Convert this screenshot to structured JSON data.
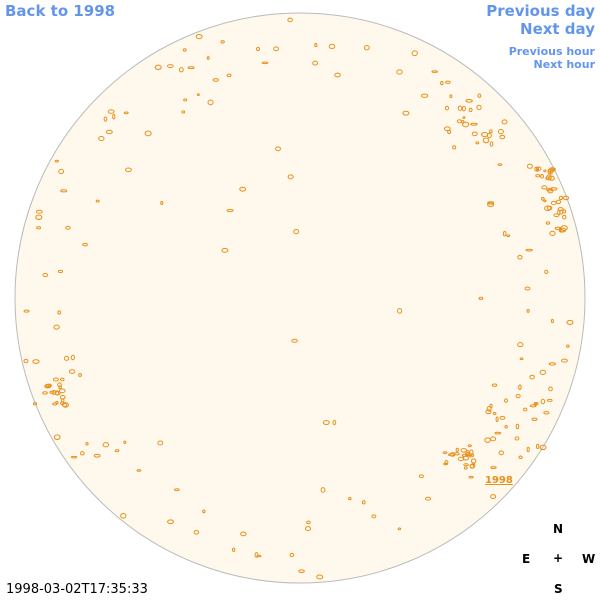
{
  "links": {
    "back": "Back to 1998",
    "previous_day": "Previous day",
    "next_day": "Next day",
    "previous_hour": "Previous hour",
    "next_hour": "Next hour"
  },
  "region_label": "1998",
  "compass": {
    "north": "N",
    "east": "E",
    "center": "+",
    "west": "W",
    "south": "S"
  },
  "timestamp": "1998-03-02T17:35:33"
}
